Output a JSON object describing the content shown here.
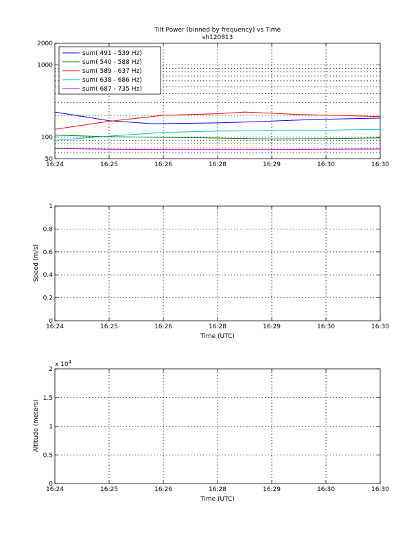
{
  "chart_data": [
    {
      "type": "line",
      "title": "Tilt Power (binned by frequency) vs Time",
      "subtitle": "sh120813",
      "xlabel": "",
      "ylabel": "",
      "yscale": "log",
      "ylim": [
        50,
        2000
      ],
      "yticks": [
        50,
        100,
        1000,
        2000
      ],
      "ytick_labels": [
        "50",
        "100",
        "1000",
        "2000"
      ],
      "xlim": [
        0,
        6
      ],
      "xticks": [
        0,
        1,
        2,
        3,
        4,
        5
      ],
      "xtick_labels": [
        "16:24",
        "16:25",
        "16:26",
        "16:28",
        "16:29",
        "16:30"
      ],
      "grid": true,
      "legend_position": "top-left",
      "series": [
        {
          "name": "sum(   491 -     539 Hz)",
          "color": "#0000ff",
          "x": [
            0,
            1,
            1.8,
            3,
            3.6,
            4.8,
            6
          ],
          "y": [
            222,
            168,
            153,
            157,
            162,
            175,
            183
          ]
        },
        {
          "name": "sum(   540 -     588 Hz)",
          "color": "#008000",
          "x": [
            0,
            1,
            2.5,
            4,
            5,
            6
          ],
          "y": [
            106,
            101,
            98,
            94,
            95,
            97
          ]
        },
        {
          "name": "sum(   589 -     637 Hz)",
          "color": "#ff0000",
          "x": [
            0,
            1,
            2,
            3,
            3.5,
            4.5,
            6
          ],
          "y": [
            128,
            165,
            200,
            210,
            222,
            205,
            192
          ]
        },
        {
          "name": "sum(   638 -     686 Hz)",
          "color": "#00bfbf",
          "x": [
            0,
            1,
            2,
            3,
            4,
            5,
            6
          ],
          "y": [
            90,
            103,
            116,
            121,
            122,
            124,
            128
          ]
        },
        {
          "name": "sum(   687 -     735 Hz)",
          "color": "#bf00bf",
          "x": [
            0,
            1,
            2,
            3,
            4,
            5,
            6
          ],
          "y": [
            69,
            67.5,
            67,
            67,
            67,
            67.5,
            68
          ]
        }
      ]
    },
    {
      "type": "line",
      "title": "",
      "xlabel": "Time (UTC)",
      "ylabel": "Speed (m/s)",
      "yscale": "linear",
      "ylim": [
        0,
        1
      ],
      "yticks": [
        0,
        0.2,
        0.4,
        0.6,
        0.8,
        1
      ],
      "ytick_labels": [
        "0",
        "0.2",
        "0.4",
        "0.6",
        "0.8",
        "1"
      ],
      "xlim": [
        0,
        6
      ],
      "xticks": [
        0,
        1,
        2,
        3,
        4,
        5
      ],
      "xtick_labels": [
        "16:24",
        "16:25",
        "16:26",
        "16:28",
        "16:29",
        "16:30"
      ],
      "grid": true,
      "series": []
    },
    {
      "type": "line",
      "title": "",
      "xlabel": "Time (UTC)",
      "ylabel": "Altitude (meters)",
      "yscale": "linear",
      "ylim": [
        0,
        2
      ],
      "yticks": [
        0,
        0.5,
        1,
        1.5,
        2
      ],
      "ytick_labels": [
        "0",
        "0.5",
        "1",
        "1.5",
        "2"
      ],
      "y_multiplier_base": "x 10",
      "y_multiplier_exponent": "4",
      "xlim": [
        0,
        6
      ],
      "xticks": [
        0,
        1,
        2,
        3,
        4,
        5
      ],
      "xtick_labels": [
        "16:24",
        "16:25",
        "16:26",
        "16:28",
        "16:29",
        "16:30"
      ],
      "grid": true,
      "series": []
    }
  ]
}
